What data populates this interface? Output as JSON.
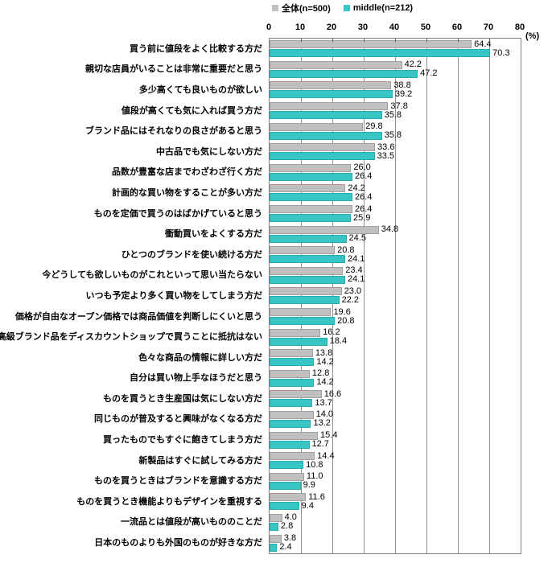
{
  "legend": {
    "items": [
      {
        "label": "全体(n=500)",
        "color": "#C0C0C0"
      },
      {
        "label": "middle(n=212)",
        "color": "#38C5C5"
      }
    ]
  },
  "axis": {
    "unit_label": "(%)"
  },
  "chart_data": {
    "type": "bar",
    "orientation": "horizontal",
    "title": "",
    "xlabel": "(%)",
    "xlim": [
      0,
      80
    ],
    "x_ticks": [
      0,
      10,
      20,
      30,
      40,
      50,
      60,
      70,
      80
    ],
    "grid": "vertical gridlines every 10 percent",
    "legend_position": "top",
    "value_labels": "shown at bar ends with 1 decimal",
    "categories": [
      "買う前に値段をよく比較する方だ",
      "親切な店員がいることは非常に重要だと思う",
      "多少高くても良いものが欲しい",
      "値段が高くても気に入れば買う方だ",
      "ブランド品にはそれなりの良さがあると思う",
      "中古品でも気にしない方だ",
      "品数が豊富な店までわざわざ行く方だ",
      "計画的な買い物をすることが多い方だ",
      "ものを定価で買うのはばかげていると思う",
      "衝動買いをよくする方だ",
      "ひとつのブランドを使い続ける方だ",
      "今どうしても欲しいものがこれといって思い当たらない",
      "いつも予定より多く買い物をしてしまう方だ",
      "価格が自由なオープン価格では商品価値を判断しにくいと思う",
      "高級ブランド品をディスカウントショップで買うことに抵抗はない",
      "色々な商品の情報に詳しい方だ",
      "自分は買い物上手なほうだと思う",
      "ものを買うとき生産国は気にしない方だ",
      "同じものが普及すると興味がなくなる方だ",
      "買ったものでもすぐに飽きてしまう方だ",
      "新製品はすぐに試してみる方だ",
      "ものを買うときはブランドを意識する方だ",
      "ものを買うとき機能よりもデザインを重視する",
      "一流品とは値段が高いもののことだ",
      "日本のものよりも外国のものが好きな方だ"
    ],
    "series": [
      {
        "name": "全体(n=500)",
        "key": "zentai",
        "color": "#C0C0C0",
        "border_color": "#A0A0A0",
        "values": [
          64.4,
          42.2,
          38.8,
          37.8,
          29.8,
          33.6,
          26.0,
          24.2,
          26.4,
          34.8,
          20.8,
          23.4,
          23.0,
          19.6,
          16.2,
          13.8,
          12.8,
          16.6,
          14.0,
          15.4,
          14.4,
          11.0,
          11.6,
          4.0,
          3.8
        ]
      },
      {
        "name": "middle(n=212)",
        "key": "middle",
        "color": "#38C5C5",
        "border_color": "#27ABAB",
        "values": [
          70.3,
          47.2,
          39.2,
          35.8,
          35.8,
          33.5,
          26.4,
          26.4,
          25.9,
          24.5,
          24.1,
          24.1,
          22.2,
          20.8,
          18.4,
          14.2,
          14.2,
          13.7,
          13.2,
          12.7,
          10.8,
          9.9,
          9.4,
          2.8,
          2.4
        ]
      }
    ]
  }
}
